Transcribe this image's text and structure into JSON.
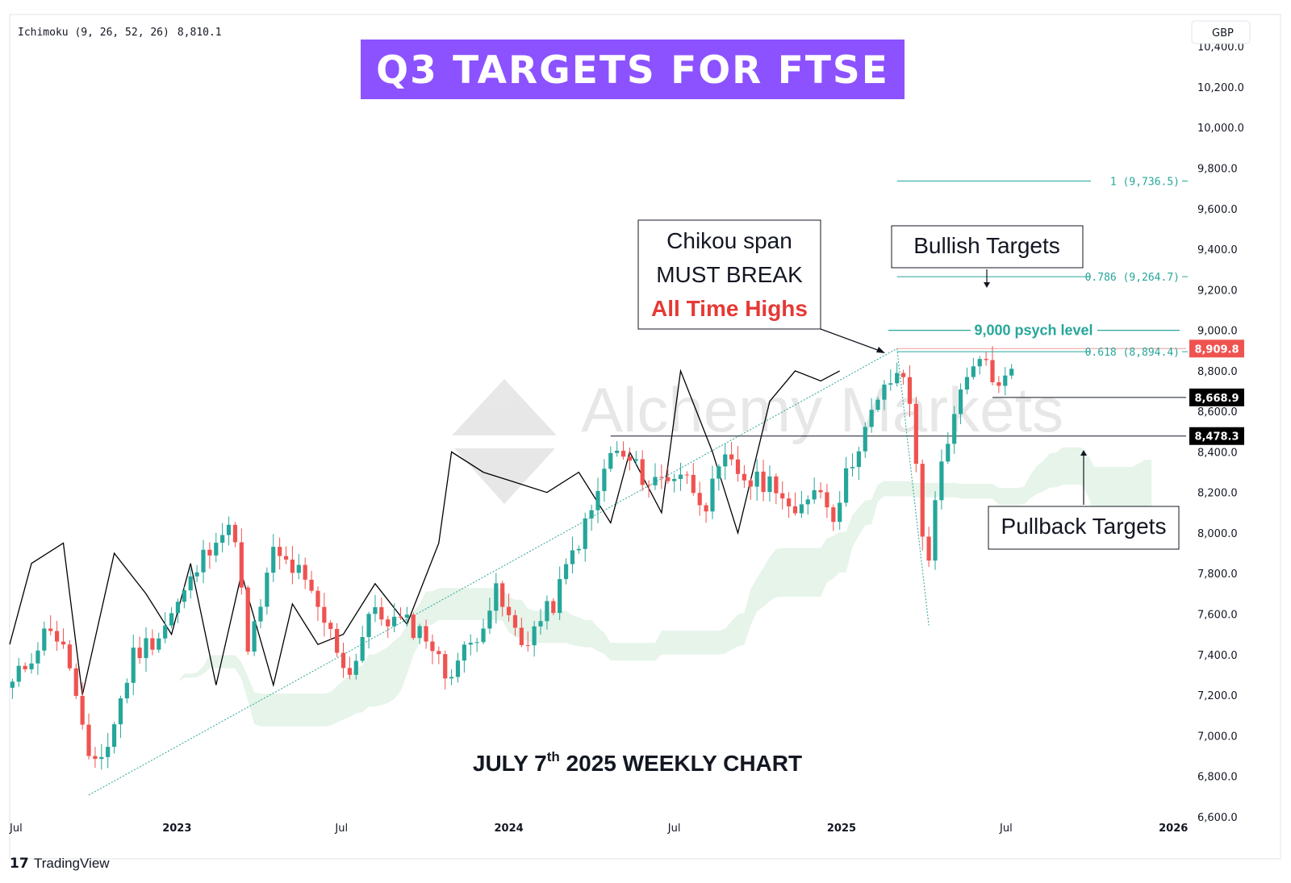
{
  "indicator": {
    "label": "Ichimoku (9, 26, 52, 26)",
    "value": "8,810.1"
  },
  "currency": "GBP",
  "headline": "Q3 TARGETS FOR FTSE",
  "footer_title": {
    "main": "JULY 7",
    "sup": "th",
    "rest": " 2025 WEEKLY CHART"
  },
  "callouts": {
    "chikou": [
      "Chikou span",
      "MUST BREAK",
      "All Time Highs"
    ],
    "bullish": "Bullish Targets",
    "pullback": "Pullback Targets"
  },
  "watermark": "Alchemy Markets",
  "brand": "TradingView",
  "colors": {
    "up": "#26a69a",
    "down": "#ef5350",
    "banner": "#8c52ff",
    "fib": "#26a69a",
    "chikou": "#000000",
    "cloud_up": "#e6f4ea",
    "cloud_down": "#fde4e4",
    "ath_label": "#ef5350"
  },
  "chart_data": {
    "type": "candlestick",
    "timeframe": "weekly",
    "y_axis": {
      "ticks": [
        6600,
        6800,
        7000,
        7200,
        7400,
        7600,
        7800,
        8000,
        8200,
        8400,
        8600,
        8800,
        9000,
        9200,
        9400,
        9600,
        9800,
        10000,
        10200,
        10400
      ],
      "tick_labels": [
        "6,600.0",
        "6,800.0",
        "7,000.0",
        "7,200.0",
        "7,400.0",
        "7,600.0",
        "7,800.0",
        "8,000.0",
        "8,200.0",
        "8,400.0",
        "8,600.0",
        "8,800.0",
        "9,000.0",
        "9,200.0",
        "9,400.0",
        "9,600.0",
        "9,800.0",
        "10,000.0",
        "10,200.0",
        "10,400.0"
      ],
      "range": [
        6500,
        10550
      ]
    },
    "x_axis": {
      "labels": [
        {
          "label": "Jul",
          "date": "2022-07-01",
          "bold": false
        },
        {
          "label": "2023",
          "date": "2023-01-01",
          "bold": true
        },
        {
          "label": "Jul",
          "date": "2023-07-01",
          "bold": false
        },
        {
          "label": "2024",
          "date": "2024-01-01",
          "bold": true
        },
        {
          "label": "Jul",
          "date": "2024-07-01",
          "bold": false
        },
        {
          "label": "2025",
          "date": "2025-01-01",
          "bold": true
        },
        {
          "label": "Jul",
          "date": "2025-07-01",
          "bold": false
        },
        {
          "label": "2026",
          "date": "2026-01-01",
          "bold": true
        }
      ],
      "range": [
        "2022-07-01",
        "2026-01-15"
      ]
    },
    "price_labels": [
      {
        "value": 8909.8,
        "label": "8,909.8",
        "style": "ath"
      },
      {
        "value": 8668.9,
        "label": "8,668.9",
        "style": "level"
      },
      {
        "value": 8478.3,
        "label": "8,478.3",
        "style": "level"
      }
    ],
    "fib_levels": [
      {
        "value": 9736.5,
        "label": "1 (9,736.5)"
      },
      {
        "value": 9264.7,
        "label": "0.786 (9,264.7)"
      },
      {
        "value": 8894.4,
        "label": "0.618 (8,894.4)"
      }
    ],
    "psych_level": {
      "value": 9000,
      "label": "9,000 psych level"
    },
    "pullback_levels": [
      8668.9,
      8478.3
    ],
    "trendline": {
      "from": {
        "date": "2022-09-26",
        "value": 6707
      },
      "to": {
        "date": "2025-03-03",
        "value": 8909.8
      }
    },
    "fib_anchor": {
      "high": {
        "date": "2025-03-03",
        "value": 8909.8
      },
      "low": {
        "date": "2025-04-07",
        "value": 7544
      }
    },
    "pullback_level_start_date": "2024-04-22",
    "ohlc_keypoints": [
      [
        "2022-07-04",
        7250
      ],
      [
        "2022-08-15",
        7550
      ],
      [
        "2022-09-05",
        7350
      ],
      [
        "2022-09-26",
        6850
      ],
      [
        "2022-10-17",
        6950
      ],
      [
        "2022-11-14",
        7400
      ],
      [
        "2022-12-12",
        7500
      ],
      [
        "2023-01-09",
        7700
      ],
      [
        "2023-02-13",
        8000
      ],
      [
        "2023-03-06",
        8000
      ],
      [
        "2023-03-20",
        7400
      ],
      [
        "2023-04-17",
        7900
      ],
      [
        "2023-05-15",
        7800
      ],
      [
        "2023-06-19",
        7500
      ],
      [
        "2023-07-10",
        7300
      ],
      [
        "2023-07-31",
        7600
      ],
      [
        "2023-09-11",
        7550
      ],
      [
        "2023-10-02",
        7500
      ],
      [
        "2023-10-23",
        7300
      ],
      [
        "2023-11-20",
        7450
      ],
      [
        "2023-12-18",
        7700
      ],
      [
        "2024-01-15",
        7450
      ],
      [
        "2024-02-19",
        7650
      ],
      [
        "2024-03-11",
        7900
      ],
      [
        "2024-04-01",
        8100
      ],
      [
        "2024-04-22",
        8400
      ],
      [
        "2024-05-13",
        8350
      ],
      [
        "2024-06-03",
        8250
      ],
      [
        "2024-07-08",
        8300
      ],
      [
        "2024-08-05",
        8150
      ],
      [
        "2024-08-26",
        8350
      ],
      [
        "2024-09-23",
        8250
      ],
      [
        "2024-10-21",
        8250
      ],
      [
        "2024-11-11",
        8050
      ],
      [
        "2024-12-02",
        8250
      ],
      [
        "2024-12-23",
        8100
      ],
      [
        "2025-01-20",
        8450
      ],
      [
        "2025-02-17",
        8700
      ],
      [
        "2025-03-03",
        8800
      ],
      [
        "2025-03-17",
        8650
      ],
      [
        "2025-03-31",
        8000
      ],
      [
        "2025-04-07",
        7900
      ],
      [
        "2025-04-21",
        8350
      ],
      [
        "2025-05-05",
        8600
      ],
      [
        "2025-05-26",
        8800
      ],
      [
        "2025-06-09",
        8850
      ],
      [
        "2025-06-23",
        8700
      ],
      [
        "2025-07-07",
        8810
      ]
    ],
    "chikou_keypoints": [
      [
        "2022-07-01",
        7450
      ],
      [
        "2022-07-25",
        7850
      ],
      [
        "2022-08-29",
        7950
      ],
      [
        "2022-09-19",
        7200
      ],
      [
        "2022-10-24",
        7900
      ],
      [
        "2022-11-28",
        7700
      ],
      [
        "2022-12-26",
        7500
      ],
      [
        "2023-01-16",
        7850
      ],
      [
        "2023-02-13",
        7250
      ],
      [
        "2023-03-13",
        7800
      ],
      [
        "2023-04-17",
        7250
      ],
      [
        "2023-05-08",
        7650
      ],
      [
        "2023-06-05",
        7450
      ],
      [
        "2023-07-03",
        7500
      ],
      [
        "2023-08-07",
        7750
      ],
      [
        "2023-09-11",
        7550
      ],
      [
        "2023-10-16",
        7950
      ],
      [
        "2023-10-30",
        8400
      ],
      [
        "2023-12-04",
        8300
      ],
      [
        "2024-01-08",
        8250
      ],
      [
        "2024-02-12",
        8200
      ],
      [
        "2024-03-18",
        8300
      ],
      [
        "2024-04-22",
        8050
      ],
      [
        "2024-05-13",
        8400
      ],
      [
        "2024-06-17",
        8100
      ],
      [
        "2024-07-08",
        8800
      ],
      [
        "2024-08-12",
        8400
      ],
      [
        "2024-09-09",
        8000
      ],
      [
        "2024-10-14",
        8650
      ],
      [
        "2024-11-11",
        8800
      ],
      [
        "2024-12-09",
        8750
      ],
      [
        "2024-12-30",
        8800
      ]
    ]
  }
}
